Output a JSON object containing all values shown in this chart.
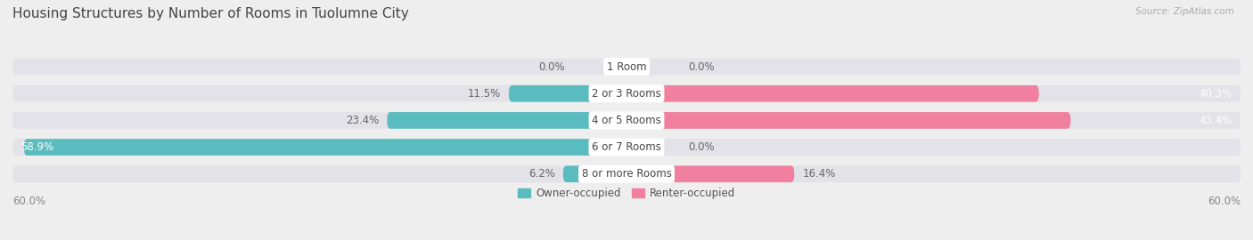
{
  "title": "Housing Structures by Number of Rooms in Tuolumne City",
  "source": "Source: ZipAtlas.com",
  "categories": [
    "1 Room",
    "2 or 3 Rooms",
    "4 or 5 Rooms",
    "6 or 7 Rooms",
    "8 or more Rooms"
  ],
  "owner_values": [
    0.0,
    11.5,
    23.4,
    58.9,
    6.2
  ],
  "renter_values": [
    0.0,
    40.3,
    43.4,
    0.0,
    16.4
  ],
  "owner_color": "#5bbcbf",
  "renter_color": "#f07fa0",
  "xlim": 60.0,
  "bg_color": "#eeeeee",
  "bar_bg_color": "#e2e2e8",
  "bar_height": 0.62,
  "title_fontsize": 11,
  "label_fontsize": 8.5,
  "axis_label_fontsize": 8.5,
  "category_fontsize": 8.5,
  "white_threshold": 30.0
}
